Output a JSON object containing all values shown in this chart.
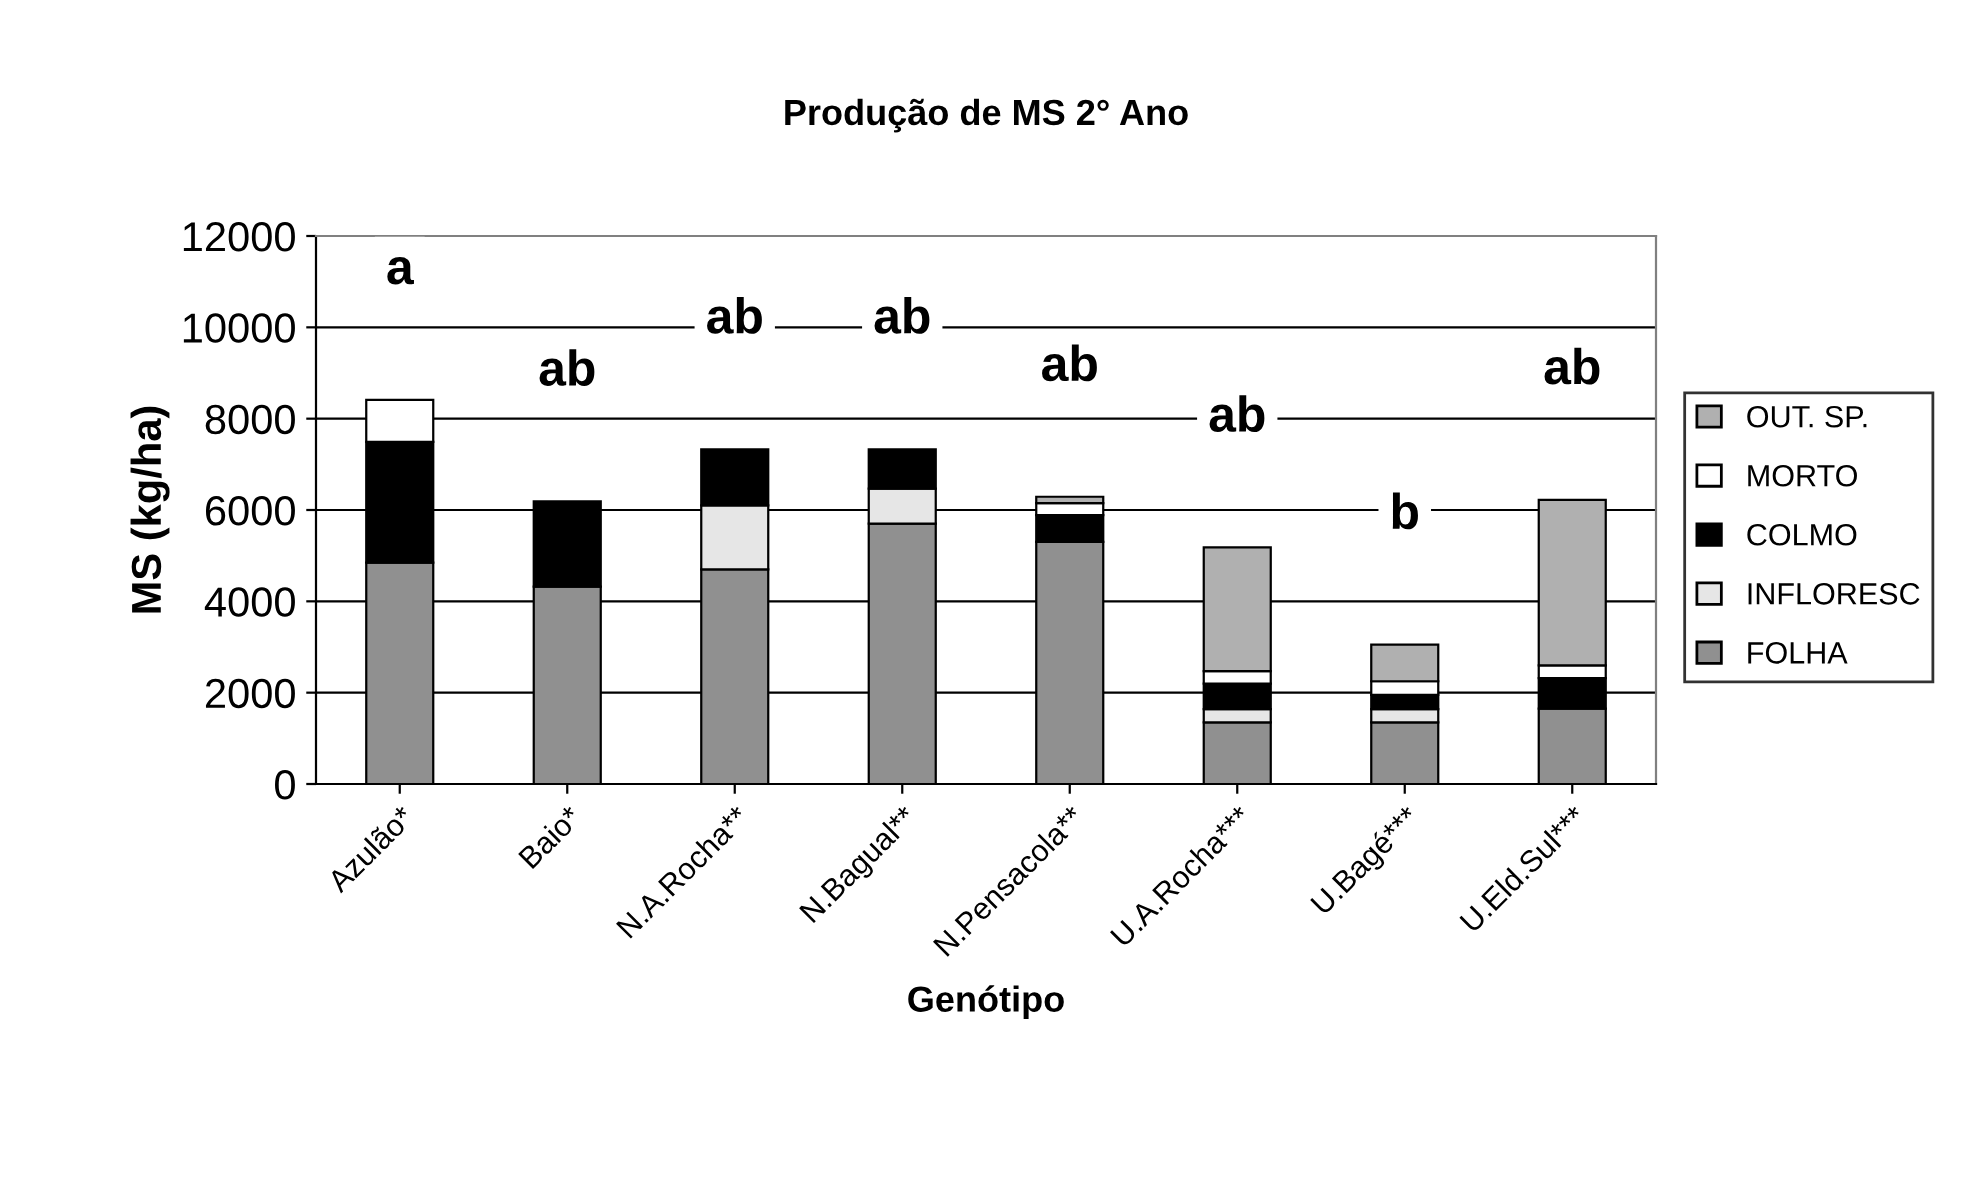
{
  "chart_data": {
    "type": "bar",
    "title": "Produção de MS 2° Ano",
    "xlabel": "Genótipo",
    "ylabel": "MS (kg/ha)",
    "categories": [
      "Azulão*",
      "Baio*",
      "N.A.Rocha**",
      "N.Bagual**",
      "N.Pensacola**",
      "U.A.Rocha***",
      "U.Bagé***",
      "U.Eld.Sul***"
    ],
    "stacked": true,
    "series": [
      {
        "name": "FOLHA",
        "color": "#909090",
        "values": [
          4850,
          4320,
          4700,
          5700,
          5300,
          1350,
          1350,
          1650
        ]
      },
      {
        "name": "INFLORESC",
        "color": "#e6e6e6",
        "values": [
          null,
          null,
          1400,
          770,
          null,
          290,
          290,
          null
        ]
      },
      {
        "name": "COLMO",
        "color": "#000000",
        "values": [
          2640,
          1870,
          1230,
          860,
          590,
          560,
          310,
          670
        ]
      },
      {
        "name": "MORTO",
        "color": "#ffffff",
        "values": [
          920,
          null,
          null,
          null,
          260,
          270,
          300,
          280
        ]
      },
      {
        "name": "OUT. SP.",
        "color": "#b0b0b0",
        "values": [
          null,
          null,
          null,
          null,
          140,
          2710,
          800,
          3620
        ]
      }
    ],
    "ylim": [
      0,
      12000
    ],
    "yticks": [
      0,
      2000,
      4000,
      6000,
      8000,
      10000,
      12000
    ],
    "grid": "y",
    "legend": "right",
    "annotations": [
      "a",
      "ab",
      "ab",
      "ab",
      "ab",
      "ab",
      "b",
      "ab"
    ]
  }
}
